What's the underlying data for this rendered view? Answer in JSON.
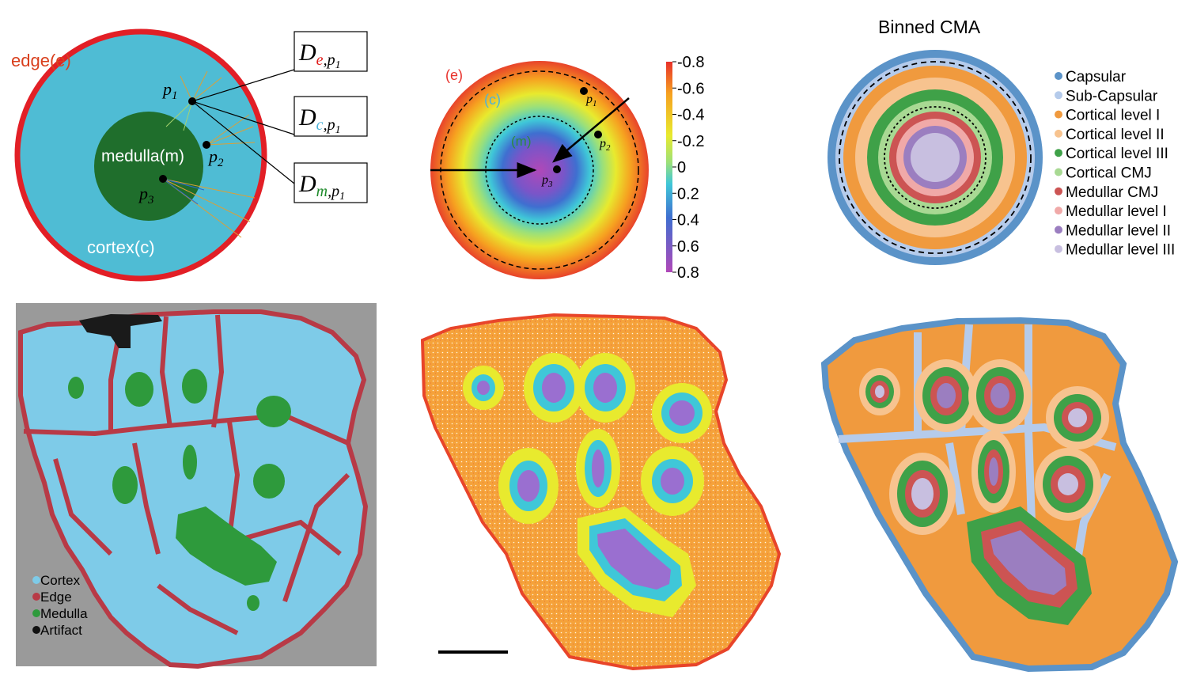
{
  "panel_a": {
    "edge_label": "edge(e)",
    "medulla_label": "medulla(m)",
    "cortex_label": "cortex(c)",
    "points": [
      "p",
      "p",
      "p"
    ],
    "point_subs": [
      "1",
      "2",
      "3"
    ],
    "boxes": [
      {
        "main": "D",
        "sub_letter": "e",
        "sub_point": "p",
        "sub_index": "1",
        "color": "#e0201e"
      },
      {
        "main": "D",
        "sub_letter": "c",
        "sub_point": "p",
        "sub_index": "1",
        "color": "#4fb3d9"
      },
      {
        "main": "D",
        "sub_letter": "m",
        "sub_point": "p",
        "sub_index": "1",
        "color": "#1e8a2a"
      }
    ],
    "colors": {
      "edge": "#e21f26",
      "cortex": "#4fbcd4",
      "medulla": "#1f6e2c",
      "edge_text": "#d9401e"
    }
  },
  "panel_b": {
    "edge_label": "(e)",
    "cortex_label": "(c)",
    "medulla_label": "(m)",
    "points": [
      "p",
      "p",
      "p"
    ],
    "point_subs": [
      "1",
      "2",
      "3"
    ],
    "colorbar_ticks": [
      "-0.8",
      "-0.6",
      "-0.4",
      "-0.2",
      "0",
      "0.2",
      "0.4",
      "0.6",
      "0.8"
    ]
  },
  "panel_c": {
    "title": "Binned CMA",
    "legend": [
      {
        "label": "Capsular",
        "color": "#5b93c8"
      },
      {
        "label": "Sub-Capsular",
        "color": "#b5cbeb"
      },
      {
        "label": "Cortical level I",
        "color": "#f09a3e"
      },
      {
        "label": "Cortical level II",
        "color": "#f7c38f"
      },
      {
        "label": "Cortical level III",
        "color": "#3fa148"
      },
      {
        "label": "Cortical CMJ",
        "color": "#a8d993"
      },
      {
        "label": "Medullar CMJ",
        "color": "#cc5453"
      },
      {
        "label": "Medullar level I",
        "color": "#f0a9a8"
      },
      {
        "label": "Medullar level II",
        "color": "#9b7ec0"
      },
      {
        "label": "Medullar level III",
        "color": "#c8bfe0"
      }
    ]
  },
  "panel_d": {
    "legend": [
      {
        "label": "Cortex",
        "color": "#7ecbe8"
      },
      {
        "label": "Edge",
        "color": "#b83a46"
      },
      {
        "label": "Medulla",
        "color": "#2e9a3c"
      },
      {
        "label": "Artifact",
        "color": "#111111"
      }
    ],
    "background": "#9a9a9a"
  }
}
